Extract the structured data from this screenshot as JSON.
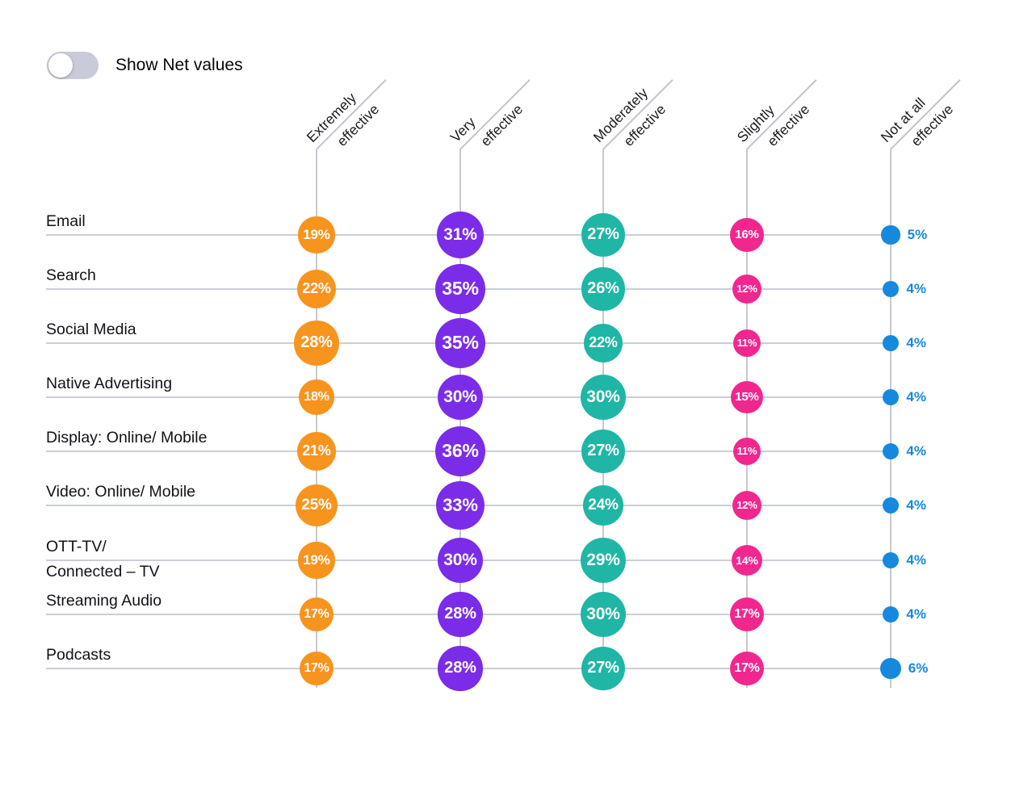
{
  "toggle": {
    "label": "Show Net values",
    "state": "off"
  },
  "colors": {
    "extremely": "#F7941E",
    "very": "#7B2CE8",
    "moderately": "#1FB6A6",
    "slightly": "#F1278F",
    "not_at_all": "#1689DF",
    "grid": "#CBCED6",
    "toggle_track": "#C9CBDA"
  },
  "chart_data": {
    "type": "bubble-matrix",
    "unit": "%",
    "bubble_size_rule": "diameter proportional to sqrt(value)",
    "columns": [
      {
        "label": "Extremely effective",
        "label_lines": [
          "Extremely",
          "effective"
        ],
        "color": "#F7941E",
        "value_inside": true
      },
      {
        "label": "Very effective",
        "label_lines": [
          "Very",
          "effective"
        ],
        "color": "#7B2CE8",
        "value_inside": true
      },
      {
        "label": "Moderately effective",
        "label_lines": [
          "Moderately",
          "effective"
        ],
        "color": "#1FB6A6",
        "value_inside": true
      },
      {
        "label": "Slightly effective",
        "label_lines": [
          "Slightly",
          "effective"
        ],
        "color": "#F1278F",
        "value_inside": true
      },
      {
        "label": "Not at all effective",
        "label_lines": [
          "Not at all",
          "effective"
        ],
        "color": "#1689DF",
        "value_inside": false
      }
    ],
    "rows": [
      {
        "label": "Email",
        "label_lines": [
          "Email"
        ],
        "values": [
          19,
          31,
          27,
          16,
          5
        ]
      },
      {
        "label": "Search",
        "label_lines": [
          "Search"
        ],
        "values": [
          22,
          35,
          26,
          12,
          4
        ]
      },
      {
        "label": "Social Media",
        "label_lines": [
          "Social Media"
        ],
        "values": [
          28,
          35,
          22,
          11,
          4
        ]
      },
      {
        "label": "Native Advertising",
        "label_lines": [
          "Native Advertising"
        ],
        "values": [
          18,
          30,
          30,
          15,
          4
        ]
      },
      {
        "label": "Display: Online/ Mobile",
        "label_lines": [
          "Display: Online/ Mobile"
        ],
        "values": [
          21,
          36,
          27,
          11,
          4
        ]
      },
      {
        "label": "Video: Online/ Mobile",
        "label_lines": [
          "Video: Online/ Mobile"
        ],
        "values": [
          25,
          33,
          24,
          12,
          4
        ]
      },
      {
        "label": "OTT-TV/ Connected – TV",
        "label_lines": [
          "OTT-TV/",
          "Connected – TV"
        ],
        "values": [
          19,
          30,
          29,
          14,
          4
        ]
      },
      {
        "label": "Streaming Audio",
        "label_lines": [
          "Streaming Audio"
        ],
        "values": [
          17,
          28,
          30,
          17,
          4
        ]
      },
      {
        "label": "Podcasts",
        "label_lines": [
          "Podcasts"
        ],
        "values": [
          17,
          28,
          27,
          17,
          6
        ]
      }
    ]
  }
}
